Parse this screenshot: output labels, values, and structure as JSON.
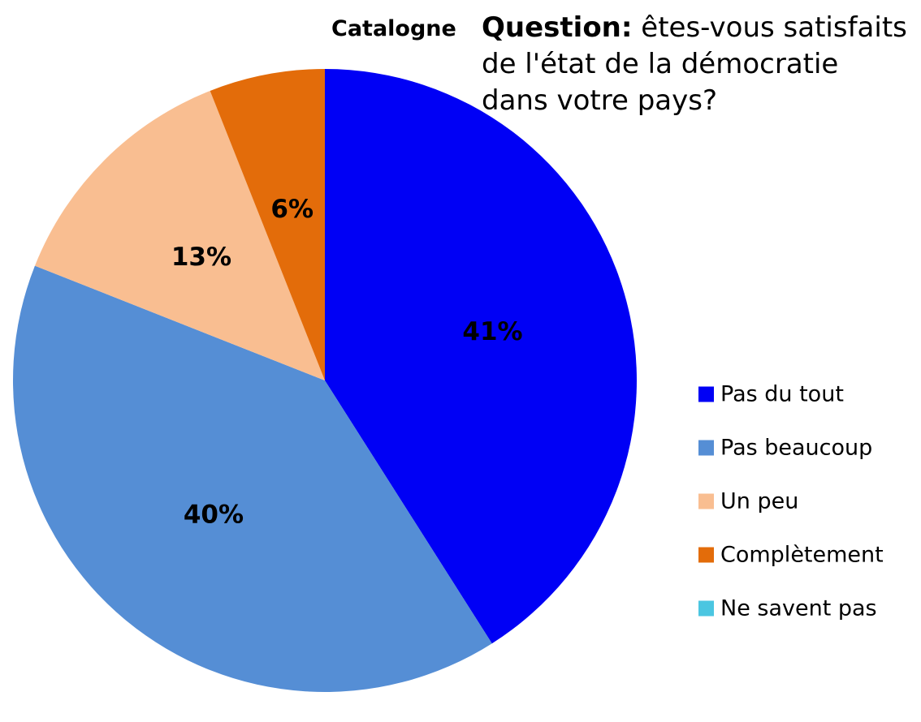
{
  "header": {
    "region": "Catalogne",
    "question_label": "Question:",
    "question_text": "êtes-vous satisfaits de l'état de la démocratie dans votre pays?"
  },
  "chart_data": {
    "type": "pie",
    "title": "Catalogne",
    "categories": [
      "Pas du tout",
      "Pas beaucoup",
      "Un peu",
      "Complètement",
      "Ne savent pas"
    ],
    "values": [
      41,
      40,
      13,
      6,
      0
    ],
    "labels": [
      "41%",
      "40%",
      "13%",
      "6%",
      ""
    ],
    "colors": [
      "#0000f5",
      "#558ed5",
      "#f9be91",
      "#e36c0a",
      "#4bc6e1"
    ],
    "legend_position": "right"
  }
}
